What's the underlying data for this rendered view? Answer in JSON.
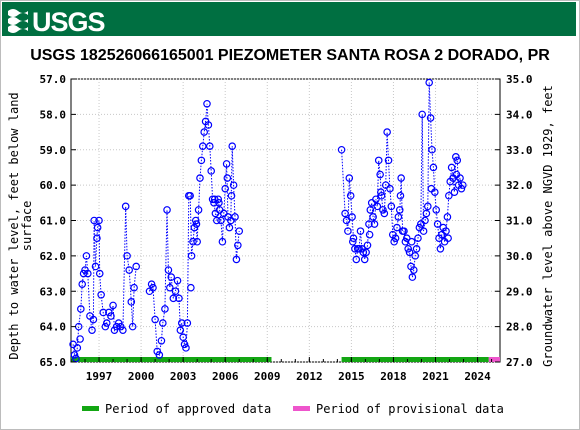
{
  "header": {
    "brand_color": "#006f41",
    "logo_text": "USGS",
    "logo_icon": "usgs-wave-icon"
  },
  "chart_data": {
    "type": "scatter",
    "title": "USGS 182526066165001 PIEZOMETER SANTA ROSA 2 DORADO, PR",
    "ylabel_left": "Depth to water level, feet below land surface",
    "ylabel_right": "Groundwater level above NGVD 1929, feet",
    "y_left_range": [
      57.0,
      65.0
    ],
    "y_left_inverted": true,
    "y_left_ticks": [
      "57.0",
      "58.0",
      "59.0",
      "60.0",
      "61.0",
      "62.0",
      "63.0",
      "64.0",
      "65.0"
    ],
    "y_right_range": [
      27.0,
      35.0
    ],
    "y_right_ticks": [
      "27.0",
      "28.0",
      "29.0",
      "30.0",
      "31.0",
      "32.0",
      "33.0",
      "34.0",
      "35.0"
    ],
    "x_range": [
      1995.0,
      2025.6
    ],
    "x_ticks": [
      "1997",
      "2000",
      "2003",
      "2006",
      "2009",
      "2012",
      "2015",
      "2018",
      "2021",
      "2024"
    ],
    "grid": true,
    "marker_color": "#0000ff",
    "series": [
      {
        "segments": [
          [
            [
              1995.15,
              64.5
            ],
            [
              1995.25,
              64.8
            ],
            [
              1995.35,
              64.9
            ],
            [
              1995.45,
              64.6
            ],
            [
              1995.55,
              64.0
            ],
            [
              1995.7,
              63.5
            ],
            [
              1995.8,
              62.8
            ],
            [
              1995.9,
              62.5
            ],
            [
              1996.0,
              62.4
            ],
            [
              1996.1,
              62.0
            ],
            [
              1996.2,
              62.5
            ],
            [
              1996.35,
              63.7
            ],
            [
              1996.5,
              64.1
            ],
            [
              1996.6,
              63.8
            ],
            [
              1996.65,
              61.0
            ],
            [
              1996.75,
              62.3
            ],
            [
              1996.85,
              61.5
            ],
            [
              1996.9,
              61.2
            ],
            [
              1997.0,
              61.0
            ],
            [
              1997.05,
              62.5
            ],
            [
              1997.15,
              63.1
            ],
            [
              1997.3,
              63.6
            ],
            [
              1997.45,
              64.0
            ],
            [
              1997.55,
              63.9
            ],
            [
              1997.7,
              63.6
            ],
            [
              1997.85,
              63.7
            ],
            [
              1998.0,
              63.4
            ],
            [
              1998.1,
              64.1
            ],
            [
              1998.25,
              64.0
            ],
            [
              1998.4,
              63.9
            ],
            [
              1998.55,
              64.0
            ],
            [
              1998.7,
              64.1
            ],
            [
              1998.9,
              60.6
            ],
            [
              1999.0,
              62.0
            ],
            [
              1999.15,
              62.4
            ],
            [
              1999.3,
              63.3
            ],
            [
              1999.4,
              64.0
            ],
            [
              1999.5,
              62.9
            ],
            [
              1999.65,
              62.3
            ]
          ],
          [
            [
              2000.6,
              63.0
            ],
            [
              2000.75,
              62.8
            ],
            [
              2000.85,
              62.9
            ],
            [
              2001.0,
              63.8
            ],
            [
              2001.15,
              64.7
            ],
            [
              2001.3,
              64.8
            ],
            [
              2001.45,
              64.4
            ],
            [
              2001.55,
              63.9
            ],
            [
              2001.7,
              63.5
            ],
            [
              2001.85,
              60.7
            ],
            [
              2001.95,
              62.4
            ],
            [
              2002.05,
              62.9
            ],
            [
              2002.15,
              62.6
            ],
            [
              2002.3,
              63.2
            ],
            [
              2002.45,
              63.0
            ],
            [
              2002.6,
              62.7
            ],
            [
              2002.7,
              63.2
            ],
            [
              2002.8,
              64.1
            ],
            [
              2002.9,
              63.9
            ],
            [
              2003.0,
              64.3
            ],
            [
              2003.1,
              64.5
            ],
            [
              2003.2,
              64.6
            ],
            [
              2003.3,
              63.9
            ],
            [
              2003.4,
              60.3
            ],
            [
              2003.5,
              60.3
            ],
            [
              2003.6,
              62.0
            ],
            [
              2003.7,
              61.6
            ],
            [
              2003.8,
              61.2
            ],
            [
              2003.9,
              61.0
            ],
            [
              2004.0,
              61.6
            ],
            [
              2004.1,
              60.7
            ],
            [
              2004.2,
              59.8
            ],
            [
              2004.3,
              59.3
            ],
            [
              2004.4,
              58.9
            ],
            [
              2004.5,
              58.5
            ],
            [
              2004.6,
              58.2
            ],
            [
              2004.7,
              57.7
            ],
            [
              2004.8,
              58.3
            ],
            [
              2004.9,
              58.9
            ],
            [
              2005.0,
              59.6
            ],
            [
              2005.1,
              60.4
            ],
            [
              2005.2,
              60.5
            ],
            [
              2005.3,
              60.8
            ],
            [
              2005.4,
              61.0
            ],
            [
              2005.5,
              60.4
            ],
            [
              2005.6,
              60.7
            ],
            [
              2005.7,
              61.0
            ],
            [
              2005.8,
              61.6
            ],
            [
              2005.9,
              60.8
            ],
            [
              2006.0,
              60.1
            ],
            [
              2006.1,
              59.4
            ],
            [
              2006.2,
              60.9
            ],
            [
              2006.3,
              61.2
            ],
            [
              2006.4,
              61.0
            ],
            [
              2006.5,
              58.9
            ],
            [
              2006.6,
              60.0
            ],
            [
              2006.7,
              60.9
            ],
            [
              2006.8,
              62.1
            ],
            [
              2006.9,
              61.7
            ],
            [
              2007.0,
              61.3
            ]
          ]
        ],
        "isolated_points": [
          [
            1995.65,
            64.35
          ],
          [
            2003.55,
            62.9
          ],
          [
            2003.95,
            61.1
          ],
          [
            2005.25,
            60.4
          ],
          [
            2005.55,
            60.5
          ],
          [
            2006.15,
            59.8
          ],
          [
            2006.45,
            60.3
          ]
        ]
      },
      {
        "segments": [
          [
            [
              2014.3,
              59.0
            ],
            [
              2014.55,
              60.8
            ],
            [
              2014.65,
              61.0
            ],
            [
              2014.75,
              61.3
            ],
            [
              2014.85,
              59.8
            ],
            [
              2014.95,
              60.3
            ],
            [
              2015.05,
              60.9
            ],
            [
              2015.15,
              61.5
            ],
            [
              2015.25,
              61.8
            ],
            [
              2015.35,
              62.1
            ],
            [
              2015.45,
              61.8
            ],
            [
              2015.55,
              61.8
            ],
            [
              2015.65,
              61.3
            ],
            [
              2015.75,
              61.8
            ],
            [
              2015.85,
              61.9
            ],
            [
              2015.95,
              62.1
            ],
            [
              2016.05,
              61.9
            ],
            [
              2016.15,
              61.7
            ],
            [
              2016.25,
              61.1
            ],
            [
              2016.35,
              60.7
            ],
            [
              2016.45,
              60.5
            ],
            [
              2016.55,
              60.9
            ],
            [
              2016.65,
              61.1
            ],
            [
              2016.75,
              60.4
            ],
            [
              2016.85,
              60.6
            ],
            [
              2016.95,
              59.3
            ],
            [
              2017.05,
              59.7
            ],
            [
              2017.15,
              60.3
            ],
            [
              2017.25,
              60.7
            ],
            [
              2017.35,
              60.8
            ],
            [
              2017.45,
              60.0
            ],
            [
              2017.55,
              58.5
            ],
            [
              2017.65,
              59.3
            ],
            [
              2017.75,
              60.1
            ],
            [
              2017.85,
              60.6
            ],
            [
              2017.95,
              61.4
            ],
            [
              2018.05,
              61.6
            ],
            [
              2018.15,
              61.5
            ],
            [
              2018.25,
              61.2
            ],
            [
              2018.35,
              60.9
            ],
            [
              2018.45,
              60.7
            ],
            [
              2018.55,
              59.8
            ],
            [
              2018.65,
              61.3
            ],
            [
              2018.75,
              61.3
            ],
            [
              2018.85,
              61.6
            ],
            [
              2018.95,
              61.5
            ],
            [
              2019.05,
              61.8
            ],
            [
              2019.15,
              61.9
            ],
            [
              2019.25,
              62.3
            ],
            [
              2019.35,
              62.6
            ],
            [
              2019.45,
              62.4
            ],
            [
              2019.55,
              62.0
            ],
            [
              2019.65,
              61.8
            ],
            [
              2019.75,
              61.5
            ],
            [
              2019.85,
              61.2
            ],
            [
              2019.95,
              61.1
            ],
            [
              2020.05,
              58.0
            ],
            [
              2020.15,
              61.3
            ],
            [
              2020.25,
              61.0
            ],
            [
              2020.35,
              60.8
            ],
            [
              2020.45,
              60.6
            ],
            [
              2020.55,
              57.1
            ],
            [
              2020.65,
              58.1
            ],
            [
              2020.75,
              59.0
            ],
            [
              2020.85,
              59.5
            ],
            [
              2020.95,
              60.2
            ],
            [
              2021.05,
              60.7
            ],
            [
              2021.15,
              61.1
            ],
            [
              2021.25,
              61.5
            ],
            [
              2021.35,
              61.8
            ],
            [
              2021.45,
              61.4
            ],
            [
              2021.55,
              61.2
            ],
            [
              2021.65,
              61.6
            ],
            [
              2021.75,
              61.3
            ],
            [
              2021.85,
              60.9
            ],
            [
              2021.95,
              60.3
            ],
            [
              2022.05,
              59.9
            ],
            [
              2022.15,
              59.5
            ],
            [
              2022.25,
              59.8
            ],
            [
              2022.35,
              60.2
            ],
            [
              2022.45,
              59.2
            ],
            [
              2022.55,
              59.3
            ],
            [
              2022.65,
              60.0
            ],
            [
              2022.75,
              59.8
            ],
            [
              2022.85,
              60.1
            ],
            [
              2022.95,
              60.0
            ]
          ]
        ],
        "isolated_points": [
          [
            2015.1,
            61.6
          ],
          [
            2016.3,
            61.4
          ],
          [
            2017.1,
            60.2
          ],
          [
            2018.5,
            60.3
          ],
          [
            2019.3,
            61.6
          ],
          [
            2020.7,
            60.1
          ],
          [
            2021.9,
            61.5
          ],
          [
            2022.5,
            59.7
          ]
        ]
      }
    ],
    "approved_periods": [
      [
        1995.0,
        2009.3
      ],
      [
        2014.3,
        2024.8
      ]
    ],
    "provisional_periods": [
      [
        2024.8,
        2025.6
      ]
    ],
    "approved_color": "#13a613",
    "provisional_color": "#ee55cc",
    "legend": {
      "approved_label": "Period of approved data",
      "provisional_label": "Period of provisional data"
    }
  }
}
